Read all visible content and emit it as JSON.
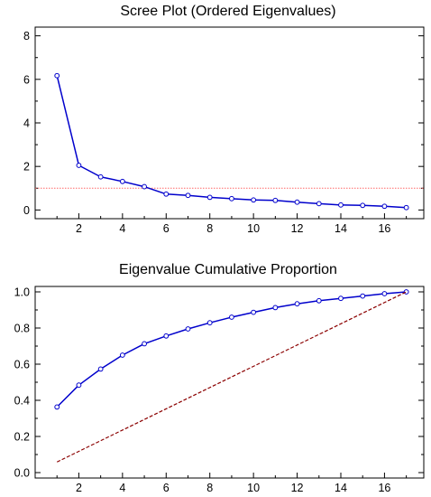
{
  "chart_data": [
    {
      "type": "line",
      "title": "Scree Plot (Ordered Eigenvalues)",
      "xlabel": "",
      "ylabel": "",
      "x": [
        1,
        2,
        3,
        4,
        5,
        6,
        7,
        8,
        9,
        10,
        11,
        12,
        13,
        14,
        15,
        16,
        17
      ],
      "series": [
        {
          "values": [
            6.17,
            2.05,
            1.52,
            1.31,
            1.07,
            0.73,
            0.67,
            0.58,
            0.52,
            0.46,
            0.44,
            0.36,
            0.29,
            0.23,
            0.21,
            0.17,
            0.11
          ],
          "color": "#0000cc",
          "marker": "circle"
        }
      ],
      "reference_line": {
        "y": 1,
        "color": "#ff6666",
        "style": "dotted"
      },
      "xlim": [
        0,
        17.8
      ],
      "ylim": [
        -0.4,
        8.4
      ],
      "xticks": [
        2,
        4,
        6,
        8,
        10,
        12,
        14,
        16
      ],
      "yticks": [
        0,
        2,
        4,
        6,
        8
      ],
      "xtick_labels": [
        "2",
        "4",
        "6",
        "8",
        "10",
        "12",
        "14",
        "16"
      ],
      "ytick_labels": [
        "0",
        "2",
        "4",
        "6",
        "8"
      ],
      "grid": false,
      "legend": "none"
    },
    {
      "type": "line",
      "title": "Eigenvalue Cumulative Proportion",
      "xlabel": "",
      "ylabel": "",
      "x": [
        1,
        2,
        3,
        4,
        5,
        6,
        7,
        8,
        9,
        10,
        11,
        12,
        13,
        14,
        15,
        16,
        17
      ],
      "series": [
        {
          "values": [
            0.363,
            0.484,
            0.573,
            0.65,
            0.713,
            0.756,
            0.795,
            0.829,
            0.86,
            0.887,
            0.913,
            0.934,
            0.951,
            0.964,
            0.977,
            0.99,
            1.0
          ],
          "color": "#0000cc",
          "marker": "circle"
        },
        {
          "values": [
            0.0588,
            0.1176,
            0.1765,
            0.2353,
            0.2941,
            0.3529,
            0.4118,
            0.4706,
            0.5294,
            0.5882,
            0.6471,
            0.7059,
            0.7647,
            0.8235,
            0.8824,
            0.9412,
            1.0
          ],
          "color": "#8b0000",
          "style": "dashed",
          "marker": "none"
        }
      ],
      "xlim": [
        0,
        17.8
      ],
      "ylim": [
        -0.03,
        1.03
      ],
      "xticks": [
        2,
        4,
        6,
        8,
        10,
        12,
        14,
        16
      ],
      "yticks": [
        0.0,
        0.2,
        0.4,
        0.6,
        0.8,
        1.0
      ],
      "xtick_labels": [
        "2",
        "4",
        "6",
        "8",
        "10",
        "12",
        "14",
        "16"
      ],
      "ytick_labels": [
        "0.0",
        "0.2",
        "0.4",
        "0.6",
        "0.8",
        "1.0"
      ],
      "grid": false,
      "legend": "none"
    }
  ]
}
